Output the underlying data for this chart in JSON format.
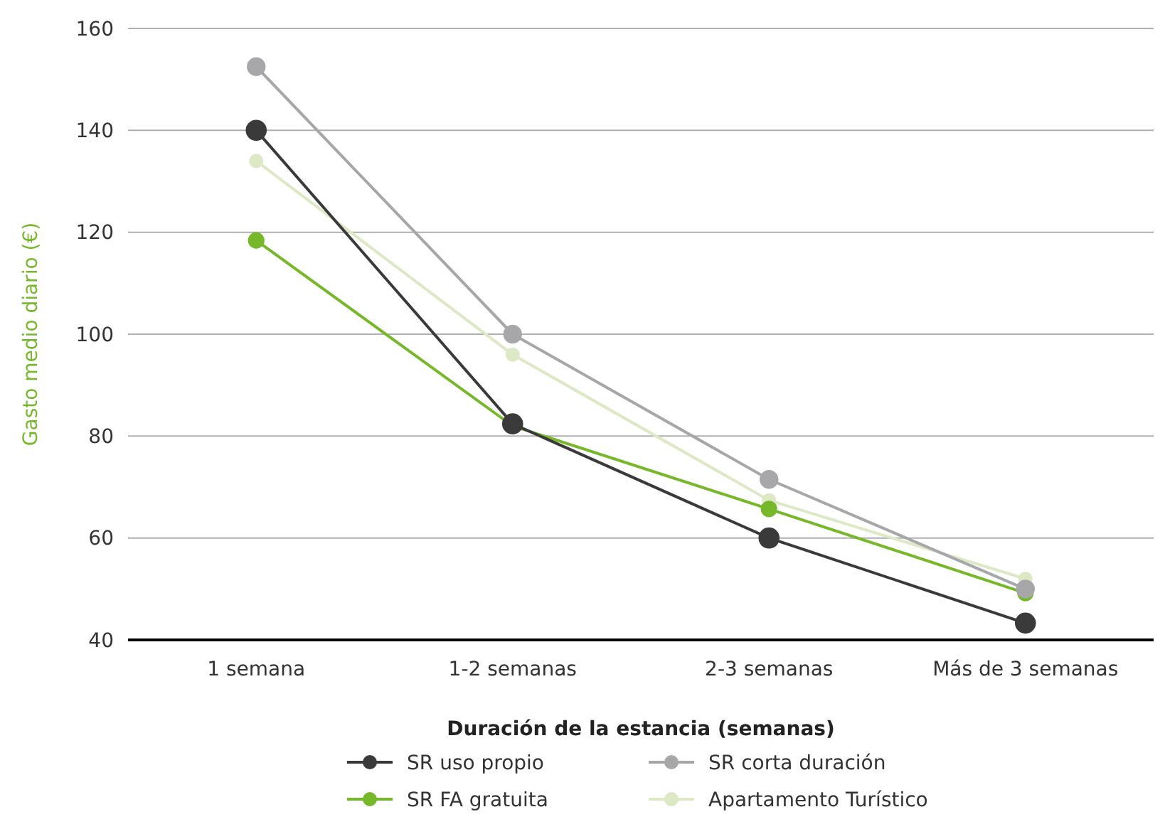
{
  "chart_data": {
    "type": "line",
    "xlabel": "Duración de la estancia (semanas)",
    "ylabel": "Gasto medio diario (€)",
    "categories": [
      "1 semana",
      "1-2 semanas",
      "2-3 semanas",
      "Más de 3 semanas"
    ],
    "ylim": [
      40,
      160
    ],
    "yticks": [
      40,
      60,
      80,
      100,
      120,
      140,
      160
    ],
    "grid": "y",
    "legend": "bottom",
    "marker": "circle",
    "series": [
      {
        "name": "SR uso propio",
        "color": "#3a3a3a",
        "values": [
          140,
          82.4,
          60,
          43.3
        ]
      },
      {
        "name": "SR corta duración",
        "color": "#a7a7a9",
        "values": [
          152.5,
          100,
          71.5,
          50
        ]
      },
      {
        "name": "SR FA gratuita",
        "color": "#76b82a",
        "values": [
          118.4,
          82,
          65.7,
          49.2
        ]
      },
      {
        "name": "Apartamento Turístico",
        "color": "#dde8c4",
        "values": [
          134,
          96,
          67.4,
          52
        ]
      }
    ]
  }
}
